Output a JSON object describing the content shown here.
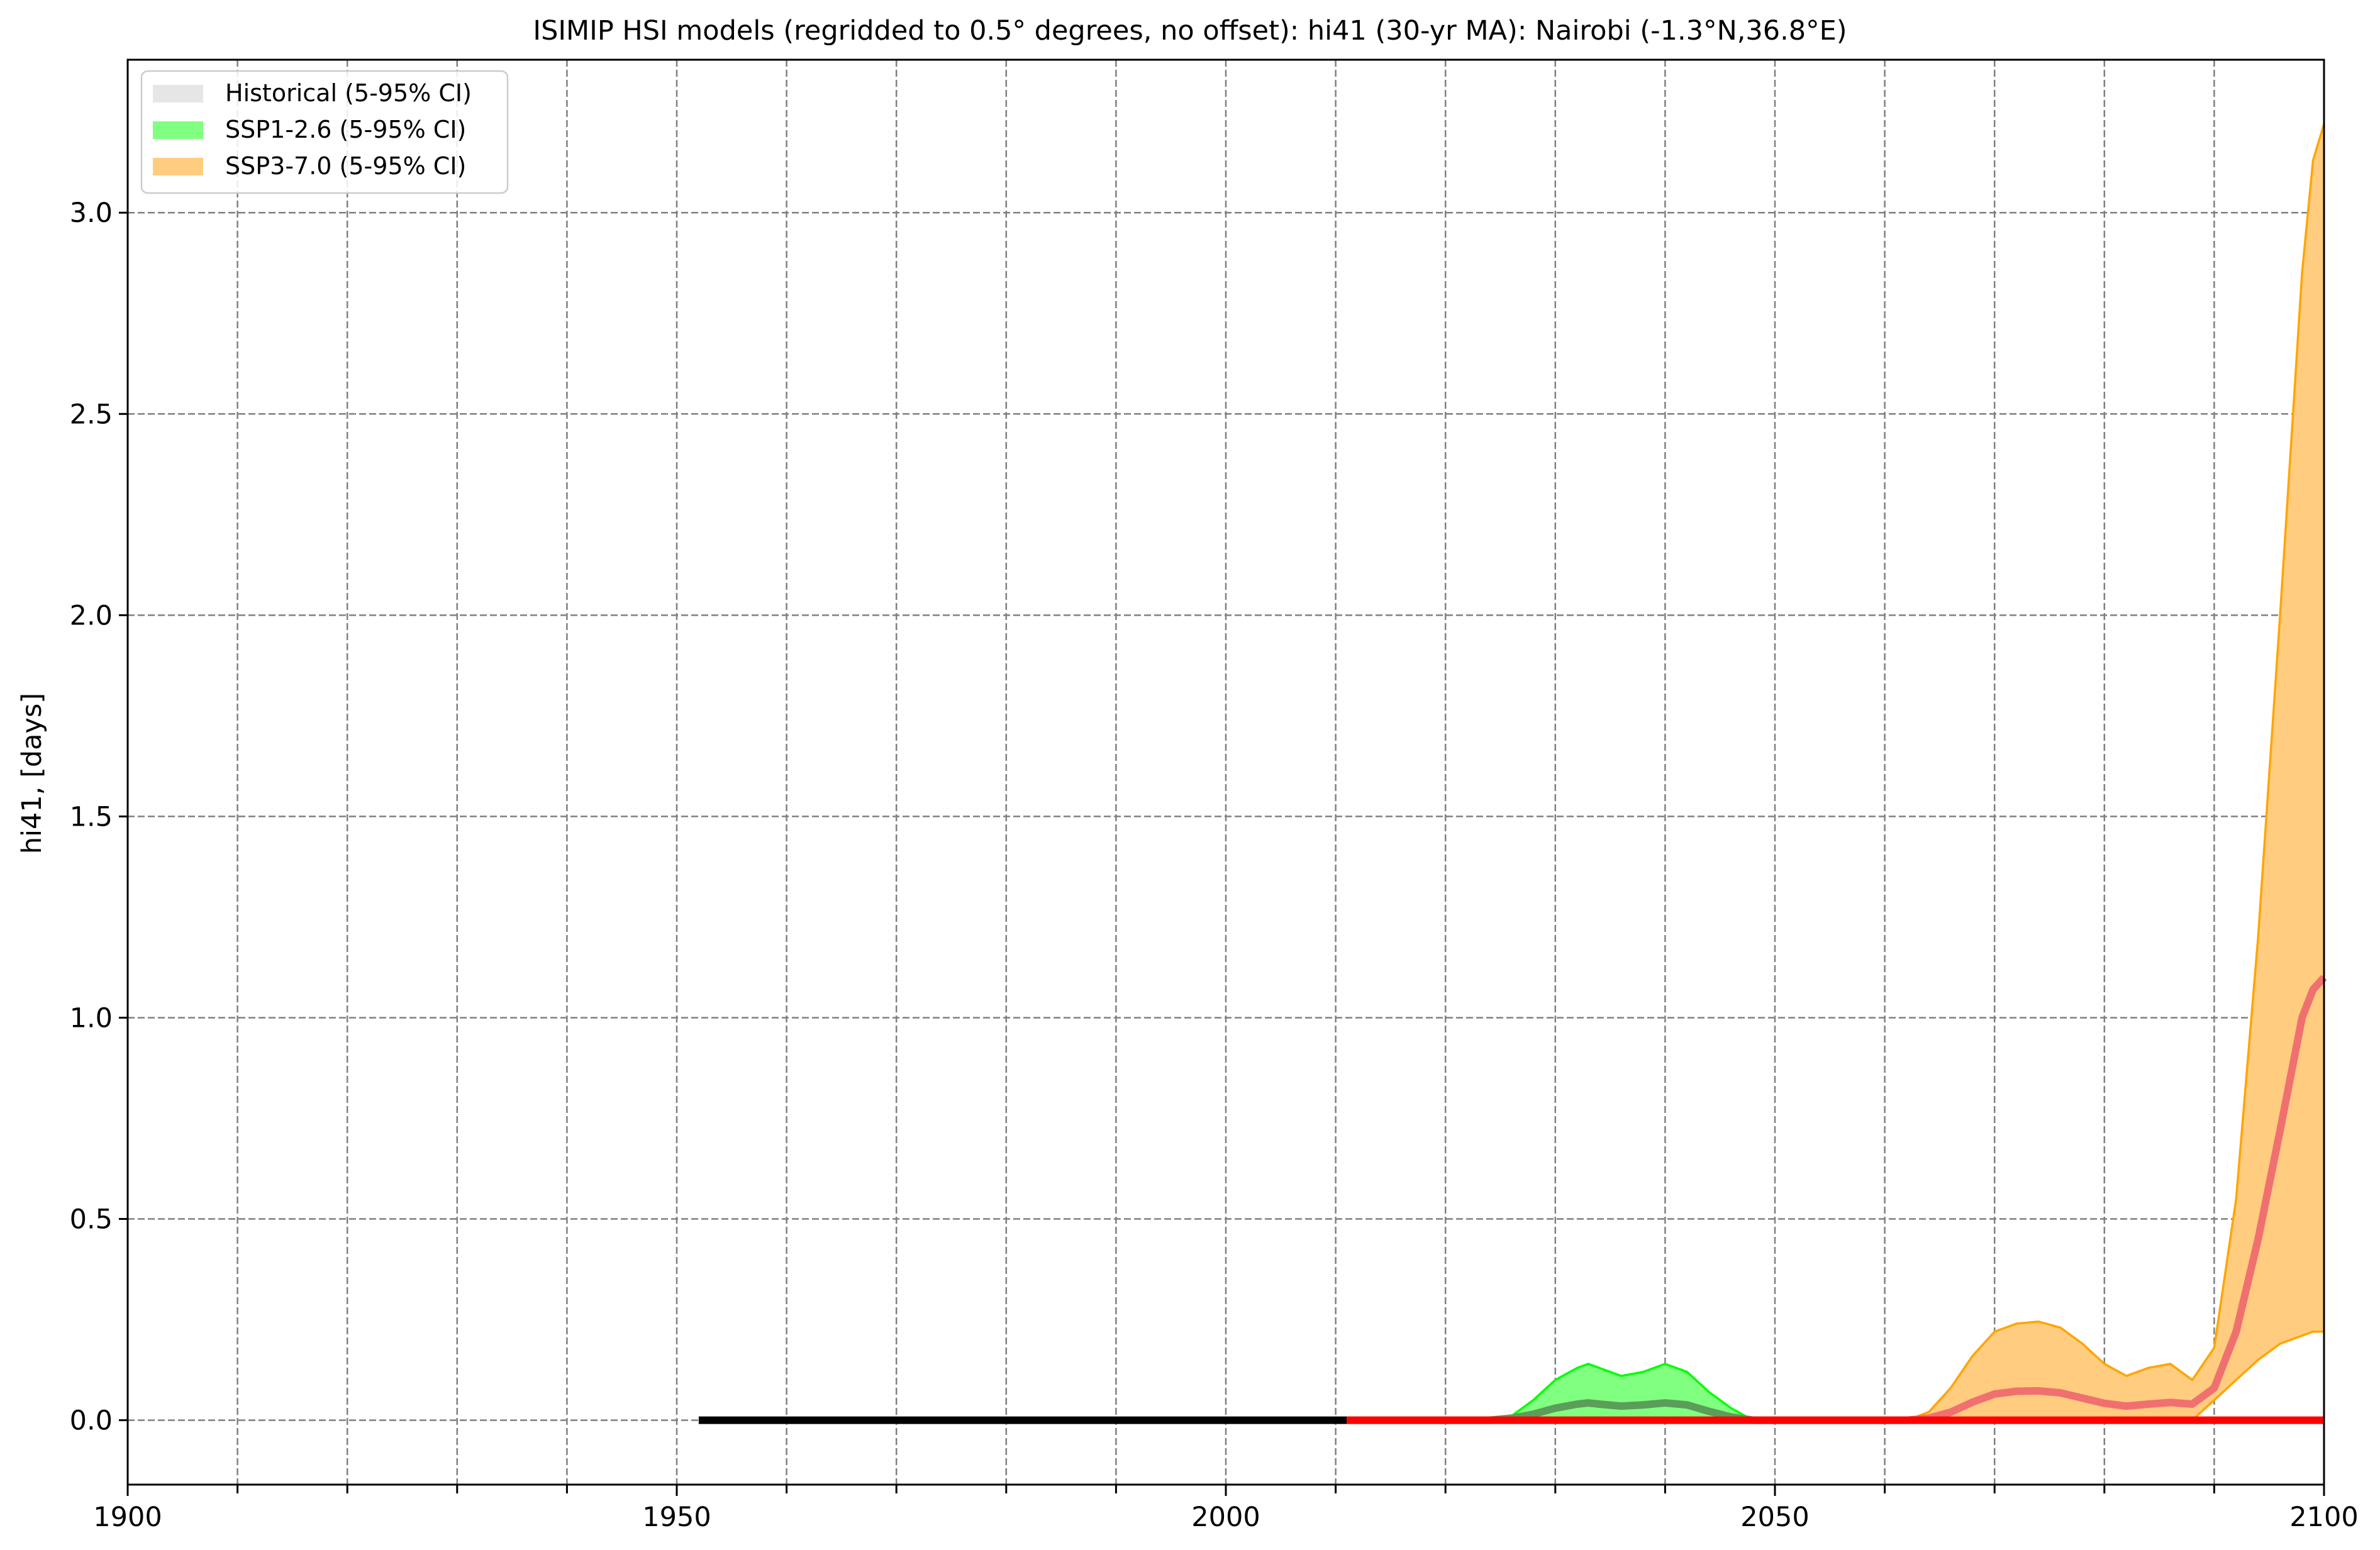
{
  "chart_data": {
    "type": "line",
    "title": "ISIMIP HSI models (regridded to 0.5° degrees, no offset): hi41 (30-yr MA): Nairobi (-1.3°N,36.8°E)",
    "xlabel": "",
    "ylabel": "hi41, [days]",
    "xlim": [
      1900,
      2100
    ],
    "ylim": [
      -0.16,
      3.38
    ],
    "x_ticks": [
      1900,
      1950,
      2000,
      2050,
      2100
    ],
    "x_tick_labels": [
      "1900",
      "1950",
      "2000",
      "2050",
      "2100"
    ],
    "x_minor_grid_step": 10,
    "y_ticks": [
      0.0,
      0.5,
      1.0,
      1.5,
      2.0,
      2.5,
      3.0
    ],
    "y_tick_labels": [
      "0.0",
      "0.5",
      "1.0",
      "1.5",
      "2.0",
      "2.5",
      "3.0"
    ],
    "grid": true,
    "legend_position": "top-left",
    "legend": [
      {
        "label": "Historical (5-95% CI)",
        "color": "#e6e6e6"
      },
      {
        "label": "SSP1-2.6 (5-95% CI)",
        "color": "#80ff80"
      },
      {
        "label": "SSP3-7.0 (5-95% CI)",
        "color": "#ffcc80"
      }
    ],
    "series": [
      {
        "kind": "band",
        "fill": "#e6e6e6",
        "x": [
          1952,
          2011
        ],
        "lower": [
          0,
          0
        ],
        "upper": [
          0,
          0
        ]
      },
      {
        "kind": "line",
        "color": "#000000",
        "x": [
          1952,
          2011
        ],
        "y": [
          0,
          0
        ]
      },
      {
        "kind": "band",
        "fill": "#80ff80",
        "edge_color": "#00ff00",
        "x": [
          2011,
          2024,
          2026,
          2028,
          2030,
          2032,
          2033,
          2034,
          2036,
          2038,
          2040,
          2042,
          2044,
          2046,
          2048,
          2050,
          2060
        ],
        "lower": [
          0,
          0,
          0,
          0,
          0,
          0,
          0,
          0,
          0,
          0,
          0,
          0,
          0,
          0,
          0,
          0,
          0
        ],
        "upper": [
          0,
          0.0,
          0.01,
          0.05,
          0.1,
          0.13,
          0.14,
          0.13,
          0.11,
          0.12,
          0.14,
          0.12,
          0.07,
          0.03,
          0.0,
          0,
          0
        ]
      },
      {
        "kind": "line",
        "color": "#5a9e5a",
        "x": [
          2011,
          2024,
          2026,
          2028,
          2030,
          2032,
          2033,
          2034,
          2036,
          2038,
          2040,
          2042,
          2044,
          2046,
          2048,
          2050,
          2060
        ],
        "y": [
          0,
          0,
          0.005,
          0.015,
          0.03,
          0.04,
          0.043,
          0.04,
          0.035,
          0.038,
          0.043,
          0.038,
          0.022,
          0.008,
          0.0,
          0,
          0
        ]
      },
      {
        "kind": "band",
        "fill": "#ffcc80",
        "edge_color": "#ffa500",
        "x": [
          2060,
          2062,
          2064,
          2066,
          2068,
          2070,
          2072,
          2074,
          2076,
          2078,
          2080,
          2082,
          2084,
          2086,
          2088,
          2090,
          2092,
          2094,
          2096,
          2098,
          2099,
          2100
        ],
        "lower": [
          0,
          0,
          0,
          0,
          0,
          0,
          0,
          0,
          0,
          0,
          0,
          0,
          0,
          0,
          0,
          0.05,
          0.1,
          0.15,
          0.19,
          0.21,
          0.22,
          0.22
        ],
        "upper": [
          0,
          0.0,
          0.02,
          0.08,
          0.16,
          0.22,
          0.24,
          0.245,
          0.23,
          0.19,
          0.14,
          0.11,
          0.13,
          0.14,
          0.1,
          0.18,
          0.55,
          1.2,
          2.0,
          2.85,
          3.13,
          3.22
        ]
      },
      {
        "kind": "line",
        "color": "#f07070",
        "x": [
          2060,
          2062,
          2064,
          2066,
          2068,
          2070,
          2072,
          2074,
          2076,
          2078,
          2080,
          2082,
          2084,
          2086,
          2088,
          2090,
          2092,
          2094,
          2096,
          2098,
          2099,
          2100
        ],
        "y": [
          0,
          0,
          0.005,
          0.02,
          0.045,
          0.065,
          0.072,
          0.073,
          0.068,
          0.055,
          0.042,
          0.035,
          0.04,
          0.044,
          0.04,
          0.08,
          0.22,
          0.45,
          0.72,
          1.0,
          1.07,
          1.1
        ]
      },
      {
        "kind": "line",
        "color": "#ff0000",
        "x": [
          2011,
          2100
        ],
        "y": [
          0,
          0
        ]
      }
    ]
  }
}
